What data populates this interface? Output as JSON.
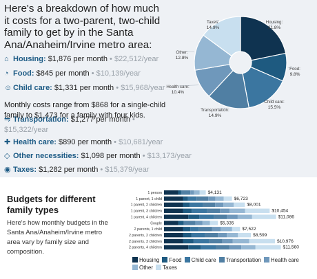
{
  "header": {
    "text": "Here's a breakdown of how much it costs for a two-parent, two-child family to get by in the Santa Ana/Anaheim/Irvine metro area:"
  },
  "items": [
    {
      "icon": "house-icon",
      "glyph": "⌂",
      "label": "Housing:",
      "monthly": "$1,876 per month",
      "sep": " •",
      "yearly": "$22,512/year"
    },
    {
      "icon": "food-icon",
      "glyph": "◔",
      "label": "Food:",
      "monthly": "$845 per month",
      "sep": " •",
      "yearly": "$10,139/year"
    },
    {
      "icon": "child-care-icon",
      "glyph": "☺",
      "label": "Child care:",
      "monthly": "$1,331 per month",
      "sep": " •",
      "yearly": "$15,968/year"
    },
    {
      "icon": "car-icon",
      "glyph": "⇋",
      "label": "Transportation:",
      "monthly": "$1,277 per month",
      "sep": " •",
      "yearly": "$15,322/year"
    },
    {
      "icon": "health-icon",
      "glyph": "✚",
      "label": "Health care:",
      "monthly": "$890 per month",
      "sep": " •",
      "yearly": "$10,681/year"
    },
    {
      "icon": "tag-icon",
      "glyph": "◇",
      "label": "Other necessities:",
      "monthly": "$1,098 per month",
      "sep": " •",
      "yearly": "$13,173/year"
    },
    {
      "icon": "dollar-icon",
      "glyph": "◉",
      "label": "Taxes:",
      "monthly": "$1,282 per month",
      "sep": " •",
      "yearly": "$15,379/year"
    }
  ],
  "childcare_note": [
    "Monthly costs range from $868 for a single-child",
    "family to $1,473 for a family with four kids."
  ],
  "bottom": {
    "title": "Budgets for different family types",
    "text": "Here's how monthly budgets in the Santa Ana/Anaheim/Irvine metro area vary by family size and composition."
  },
  "colors": [
    "#0f3350",
    "#1e5a80",
    "#3b76a0",
    "#507fa3",
    "#6f98bb",
    "#95b7d3",
    "#c8dfef"
  ],
  "chart_data": [
    {
      "type": "pie",
      "style": "donut",
      "categories": [
        "Housing",
        "Food",
        "Child care",
        "Transportation",
        "Health care",
        "Other",
        "Taxes"
      ],
      "labels": [
        "Housing:",
        "Food:",
        "Child care:",
        "Transportation:",
        "Health care:",
        "Other:",
        "Taxes:"
      ],
      "values": [
        21.8,
        9.8,
        15.5,
        14.9,
        10.4,
        12.8,
        14.9
      ],
      "value_labels": [
        "21.8%",
        "9.8%",
        "15.5%",
        "14.9%",
        "10.4%",
        "12.8%",
        "14.9%"
      ]
    },
    {
      "type": "bar",
      "orientation": "horizontal",
      "stacked": true,
      "categories": [
        "1 person",
        "1 parent, 1 child",
        "1 parent, 2 children",
        "1 parent, 3 children",
        "1 parent, 4 children",
        "Couple",
        "2 parents, 1 child",
        "2 parents, 2 children",
        "2 parents, 3 children",
        "2 parents, 4 children"
      ],
      "totals": [
        4131,
        6723,
        8001,
        10454,
        11086,
        5335,
        7522,
        8599,
        10976,
        11560
      ],
      "total_labels": [
        "$4,131",
        "$6,723",
        "$8,001",
        "$10,454",
        "$11,086",
        "$5,335",
        "$7,522",
        "$8,599",
        "$10,976",
        "$11,560"
      ],
      "series": [
        {
          "name": "Housing",
          "values": [
            1400,
            1876,
            1876,
            1876,
            2400,
            1400,
            1876,
            1876,
            1876,
            2400
          ]
        },
        {
          "name": "Food",
          "values": [
            300,
            480,
            650,
            870,
            1080,
            560,
            720,
            845,
            1050,
            1240
          ]
        },
        {
          "name": "Child care",
          "values": [
            0,
            868,
            1331,
            1510,
            1473,
            0,
            868,
            1331,
            1510,
            1473
          ]
        },
        {
          "name": "Transportation",
          "values": [
            900,
            1150,
            1200,
            1277,
            1277,
            1150,
            1277,
            1277,
            1340,
            1380
          ]
        },
        {
          "name": "Health care",
          "values": [
            380,
            700,
            810,
            940,
            1060,
            700,
            850,
            890,
            1030,
            1150
          ]
        },
        {
          "name": "Other",
          "values": [
            551,
            825,
            1034,
            1551,
            1426,
            725,
            1149,
            1098,
            1616,
            1410
          ]
        },
        {
          "name": "Taxes",
          "values": [
            600,
            824,
            1100,
            2430,
            2370,
            800,
            782,
            1282,
            2554,
            2507
          ]
        }
      ],
      "legend": [
        "Housing",
        "Food",
        "Child care",
        "Transportation",
        "Health care",
        "Other",
        "Taxes"
      ],
      "legend_position": "bottom"
    }
  ]
}
